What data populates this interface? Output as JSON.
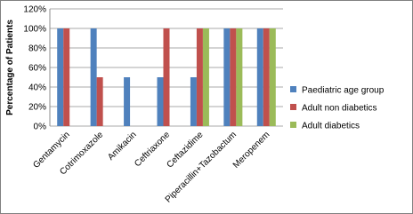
{
  "chart_data": {
    "type": "bar",
    "y_label": "Percentage of Patients",
    "categories": [
      "Gentamycin",
      "Cotrimoxazole",
      "Amikacin",
      "Ceftriaxone",
      "Ceftazidime",
      "Piperacillin+Tazobactum",
      "Meropenem"
    ],
    "series": [
      {
        "name": "Paediatric age group",
        "color": "#4f81bd",
        "values": [
          100,
          100,
          50,
          50,
          50,
          100,
          100
        ]
      },
      {
        "name": "Adult non diabetics",
        "color": "#c0504d",
        "values": [
          100,
          50,
          0,
          100,
          100,
          100,
          100
        ]
      },
      {
        "name": "Adult diabetics",
        "color": "#9bbb59",
        "values": [
          0,
          0,
          0,
          0,
          100,
          100,
          100
        ]
      }
    ],
    "ylim": [
      0,
      120
    ],
    "yticks": [
      {
        "value": 0,
        "label": "0%"
      },
      {
        "value": 20,
        "label": "20%"
      },
      {
        "value": 40,
        "label": "40%"
      },
      {
        "value": 60,
        "label": "60%"
      },
      {
        "value": 80,
        "label": "80%"
      },
      {
        "value": 100,
        "label": "100%"
      },
      {
        "value": 120,
        "label": "120%"
      }
    ],
    "grid": true,
    "legend": "right"
  }
}
